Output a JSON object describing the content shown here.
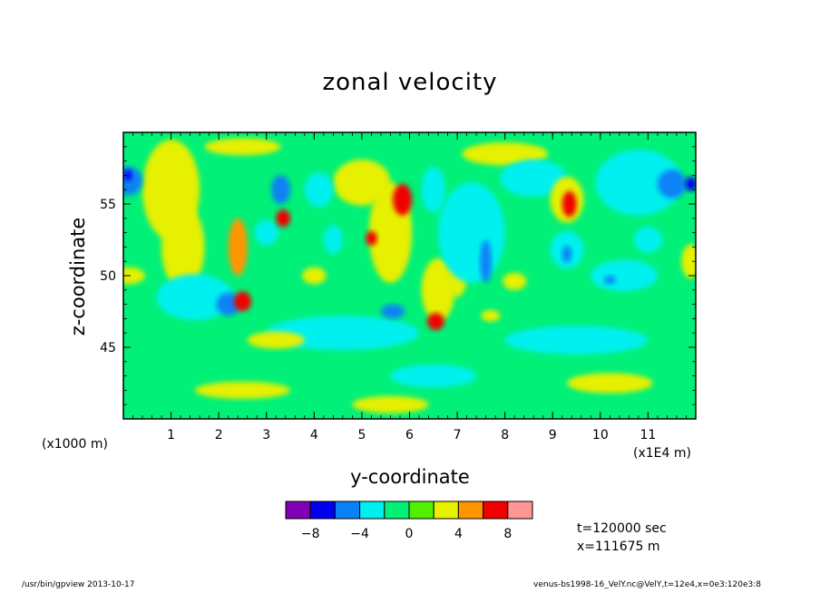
{
  "chart_data": {
    "type": "heatmap",
    "title": "zonal velocity",
    "xlabel": "y-coordinate",
    "ylabel": "z-coordinate",
    "x_scale_note": "(x1E4 m)",
    "y_scale_note": "(x1000 m)",
    "xlim": [
      0,
      12
    ],
    "ylim": [
      40,
      60
    ],
    "x_ticks": [
      1,
      2,
      3,
      4,
      5,
      6,
      7,
      8,
      9,
      10,
      11
    ],
    "y_ticks": [
      45,
      50,
      55
    ],
    "colorbar": {
      "levels": [
        -10,
        -8,
        -6,
        -4,
        -2,
        0,
        2,
        4,
        6,
        8,
        10
      ],
      "labeled_ticks": [
        -8,
        -4,
        0,
        4,
        8
      ],
      "colors": [
        "#8000b4",
        "#0000f0",
        "#0a82f5",
        "#00f0f0",
        "#00f078",
        "#50f000",
        "#e6f000",
        "#ff9600",
        "#f00000",
        "#ff9696"
      ]
    },
    "background_level_color": "#00f078",
    "blobs": [
      {
        "x": 1.0,
        "z": 56.0,
        "rx": 0.6,
        "rz": 3.5,
        "v": 3
      },
      {
        "x": 1.25,
        "z": 52.0,
        "rx": 0.45,
        "rz": 3.0,
        "v": 3
      },
      {
        "x": 2.4,
        "z": 52.0,
        "rx": 0.2,
        "rz": 2.0,
        "v": 4.5
      },
      {
        "x": 1.5,
        "z": 48.5,
        "rx": 0.8,
        "rz": 1.6,
        "v": -3
      },
      {
        "x": 2.2,
        "z": 48.0,
        "rx": 0.25,
        "rz": 0.8,
        "v": -6
      },
      {
        "x": 2.5,
        "z": 48.2,
        "rx": 0.18,
        "rz": 0.7,
        "v": 6.5
      },
      {
        "x": 3.3,
        "z": 56.0,
        "rx": 0.2,
        "rz": 1.0,
        "v": -6
      },
      {
        "x": 3.35,
        "z": 54.0,
        "rx": 0.15,
        "rz": 0.6,
        "v": 6
      },
      {
        "x": 3.0,
        "z": 53.0,
        "rx": 0.25,
        "rz": 0.9,
        "v": -3
      },
      {
        "x": 5.0,
        "z": 56.5,
        "rx": 0.6,
        "rz": 1.6,
        "v": 3
      },
      {
        "x": 5.6,
        "z": 53.0,
        "rx": 0.45,
        "rz": 3.5,
        "v": 3
      },
      {
        "x": 5.85,
        "z": 55.3,
        "rx": 0.2,
        "rz": 1.1,
        "v": 6.5
      },
      {
        "x": 5.2,
        "z": 52.6,
        "rx": 0.12,
        "rz": 0.5,
        "v": 6
      },
      {
        "x": 6.5,
        "z": 56.0,
        "rx": 0.25,
        "rz": 1.6,
        "v": -3
      },
      {
        "x": 4.4,
        "z": 52.5,
        "rx": 0.2,
        "rz": 1.0,
        "v": -3
      },
      {
        "x": 4.0,
        "z": 50.0,
        "rx": 0.25,
        "rz": 0.6,
        "v": 2.5
      },
      {
        "x": 5.65,
        "z": 47.5,
        "rx": 0.25,
        "rz": 0.5,
        "v": -5
      },
      {
        "x": 6.55,
        "z": 46.8,
        "rx": 0.18,
        "rz": 0.6,
        "v": 6.5
      },
      {
        "x": 6.6,
        "z": 49.0,
        "rx": 0.35,
        "rz": 2.2,
        "v": 3
      },
      {
        "x": 7.0,
        "z": 50.0,
        "rx": 0.2,
        "rz": 1.5,
        "v": 3
      },
      {
        "x": 7.3,
        "z": 53.0,
        "rx": 0.7,
        "rz": 3.5,
        "v": -3
      },
      {
        "x": 7.6,
        "z": 51.0,
        "rx": 0.12,
        "rz": 1.5,
        "v": -6
      },
      {
        "x": 8.2,
        "z": 49.6,
        "rx": 0.25,
        "rz": 0.6,
        "v": 3
      },
      {
        "x": 7.7,
        "z": 47.2,
        "rx": 0.2,
        "rz": 0.4,
        "v": 3
      },
      {
        "x": 8.6,
        "z": 56.8,
        "rx": 0.7,
        "rz": 1.3,
        "v": -3
      },
      {
        "x": 9.3,
        "z": 55.3,
        "rx": 0.35,
        "rz": 1.6,
        "v": 3
      },
      {
        "x": 9.35,
        "z": 55.0,
        "rx": 0.15,
        "rz": 0.9,
        "v": 6.5
      },
      {
        "x": 9.3,
        "z": 51.8,
        "rx": 0.35,
        "rz": 1.3,
        "v": -3
      },
      {
        "x": 9.3,
        "z": 51.5,
        "rx": 0.1,
        "rz": 0.6,
        "v": -6
      },
      {
        "x": 10.5,
        "z": 50.0,
        "rx": 0.7,
        "rz": 1.1,
        "v": -3
      },
      {
        "x": 10.2,
        "z": 49.7,
        "rx": 0.12,
        "rz": 0.3,
        "v": -6
      },
      {
        "x": 10.8,
        "z": 56.5,
        "rx": 0.9,
        "rz": 2.3,
        "v": -3
      },
      {
        "x": 11.5,
        "z": 56.4,
        "rx": 0.3,
        "rz": 1.0,
        "v": -5
      },
      {
        "x": 11.9,
        "z": 56.4,
        "rx": 0.12,
        "rz": 0.5,
        "v": -7
      },
      {
        "x": 0.1,
        "z": 56.6,
        "rx": 0.3,
        "rz": 1.0,
        "v": -5
      },
      {
        "x": 0.1,
        "z": 57.0,
        "rx": 0.08,
        "rz": 0.4,
        "v": -7
      },
      {
        "x": 0.1,
        "z": 50.0,
        "rx": 0.35,
        "rz": 0.6,
        "v": 3
      },
      {
        "x": 11.9,
        "z": 51.0,
        "rx": 0.2,
        "rz": 1.2,
        "v": 3
      },
      {
        "x": 4.6,
        "z": 46.0,
        "rx": 1.6,
        "rz": 1.2,
        "v": -2.5
      },
      {
        "x": 9.5,
        "z": 45.5,
        "rx": 1.5,
        "rz": 1.0,
        "v": -2.5
      },
      {
        "x": 6.5,
        "z": 43.0,
        "rx": 0.9,
        "rz": 0.8,
        "v": -2.5
      },
      {
        "x": 2.5,
        "z": 42.0,
        "rx": 1.0,
        "rz": 0.6,
        "v": 2.5
      },
      {
        "x": 5.6,
        "z": 41.0,
        "rx": 0.8,
        "rz": 0.6,
        "v": 2.5
      },
      {
        "x": 10.2,
        "z": 42.5,
        "rx": 0.9,
        "rz": 0.7,
        "v": 2.5
      },
      {
        "x": 3.2,
        "z": 45.5,
        "rx": 0.6,
        "rz": 0.6,
        "v": 2.5
      },
      {
        "x": 8.0,
        "z": 58.5,
        "rx": 0.9,
        "rz": 0.8,
        "v": 2.5
      },
      {
        "x": 2.5,
        "z": 59.0,
        "rx": 0.8,
        "rz": 0.6,
        "v": 2.5
      },
      {
        "x": 4.1,
        "z": 56.0,
        "rx": 0.3,
        "rz": 1.2,
        "v": -3
      },
      {
        "x": 11.0,
        "z": 52.5,
        "rx": 0.3,
        "rz": 0.9,
        "v": -3
      }
    ]
  },
  "annotations": {
    "time": "t=120000 sec",
    "position": "x=111675 m"
  },
  "footer": {
    "left": "/usr/bin/gpview   2013-10-17",
    "right": "venus-bs1998-16_VelY.nc@VelY,t=12e4,x=0e3:120e3:8"
  }
}
